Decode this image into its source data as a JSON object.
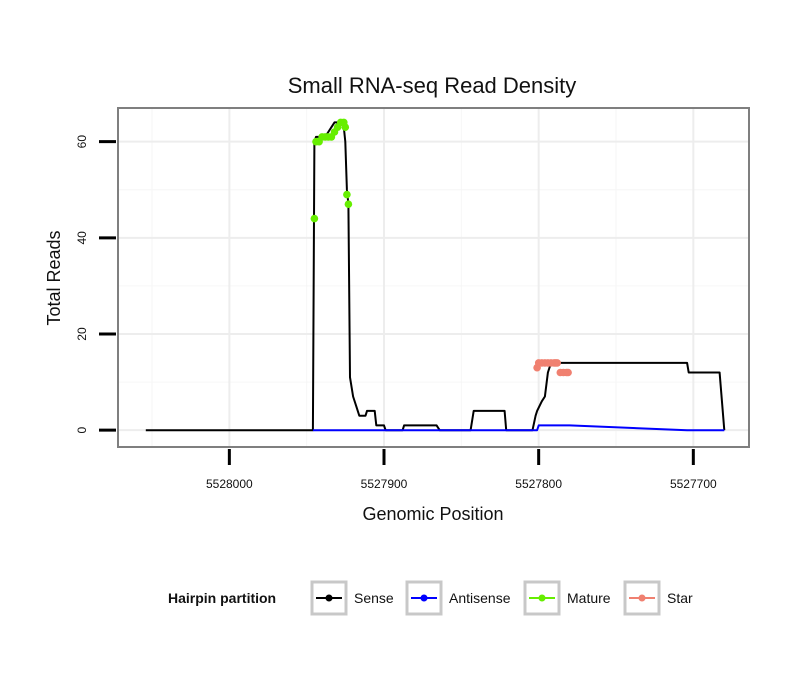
{
  "chart_data": {
    "type": "line",
    "title": "Small RNA-seq Read Density",
    "xlabel": "Genomic Position",
    "ylabel": "Total Reads",
    "xlim": [
      5528072,
      5527664
    ],
    "ylim": [
      -3.5,
      67
    ],
    "x_reversed": true,
    "x_ticks": [
      5528000,
      5527900,
      5527800,
      5527700
    ],
    "x_tick_labels": [
      "5528000",
      "5527900",
      "5527800",
      "5527700"
    ],
    "y_ticks": [
      0,
      20,
      40,
      60
    ],
    "y_tick_labels": [
      "0",
      "20",
      "40",
      "60"
    ],
    "legend": {
      "title": "Hairpin partition",
      "position": "bottom",
      "entries": [
        "Sense",
        "Antisense",
        "Mature",
        "Star"
      ]
    },
    "colors": {
      "Sense": "#000000",
      "Antisense": "#0000ff",
      "Mature": "#66ee00",
      "Star": "#f08070"
    },
    "series": [
      {
        "name": "Sense",
        "style": "line",
        "x": [
          5528054,
          5527946,
          5527945,
          5527944,
          5527942,
          5527940,
          5527938,
          5527936,
          5527934,
          5527932,
          5527930,
          5527928,
          5527926,
          5527925,
          5527924,
          5527923,
          5527922,
          5527920,
          5527918,
          5527916,
          5527914,
          5527912,
          5527911,
          5527906,
          5527905,
          5527900,
          5527899,
          5527888,
          5527887,
          5527885,
          5527884,
          5527866,
          5527864,
          5527862,
          5527861,
          5527844,
          5527842,
          5527840,
          5527822,
          5527821,
          5527819,
          5527817,
          5527816,
          5527804,
          5527802,
          5527801,
          5527798,
          5527796,
          5527794,
          5527792,
          5527790,
          5527789,
          5527704,
          5527703,
          5527684,
          5527683,
          5527680
        ],
        "y": [
          0,
          0,
          60,
          61,
          61,
          61,
          61,
          62,
          63,
          64,
          64,
          64,
          63,
          60,
          50,
          47,
          11,
          7,
          5,
          3,
          3,
          3,
          4,
          4,
          1,
          1,
          0,
          0,
          1,
          1,
          1,
          1,
          0,
          0,
          0,
          0,
          4,
          4,
          4,
          0,
          0,
          0,
          0,
          0,
          3,
          4,
          6,
          7,
          12,
          14,
          14,
          14,
          14,
          12,
          12,
          12,
          0
        ]
      },
      {
        "name": "Antisense",
        "style": "line",
        "x": [
          5527946,
          5527822,
          5527821,
          5527801,
          5527800,
          5527780,
          5527704,
          5527703,
          5527684,
          5527683,
          5527680
        ],
        "y": [
          0,
          0,
          0,
          0,
          1,
          1,
          0,
          0,
          0,
          0,
          0
        ]
      },
      {
        "name": "Mature",
        "style": "points",
        "x": [
          5527945,
          5527944,
          5527942,
          5527940,
          5527938,
          5527936,
          5527934,
          5527932,
          5527930,
          5527928,
          5527926,
          5527925,
          5527924,
          5527923
        ],
        "y": [
          44,
          60,
          60,
          61,
          61,
          61,
          61,
          62,
          63,
          64,
          64,
          63,
          49,
          47
        ]
      },
      {
        "name": "Star",
        "style": "points",
        "x": [
          5527801,
          5527800,
          5527798,
          5527796,
          5527794,
          5527792,
          5527790,
          5527789,
          5527788,
          5527786,
          5527784,
          5527782,
          5527781
        ],
        "y": [
          13,
          14,
          14,
          14,
          14,
          14,
          14,
          14,
          14,
          12,
          12,
          12,
          12
        ]
      }
    ]
  }
}
